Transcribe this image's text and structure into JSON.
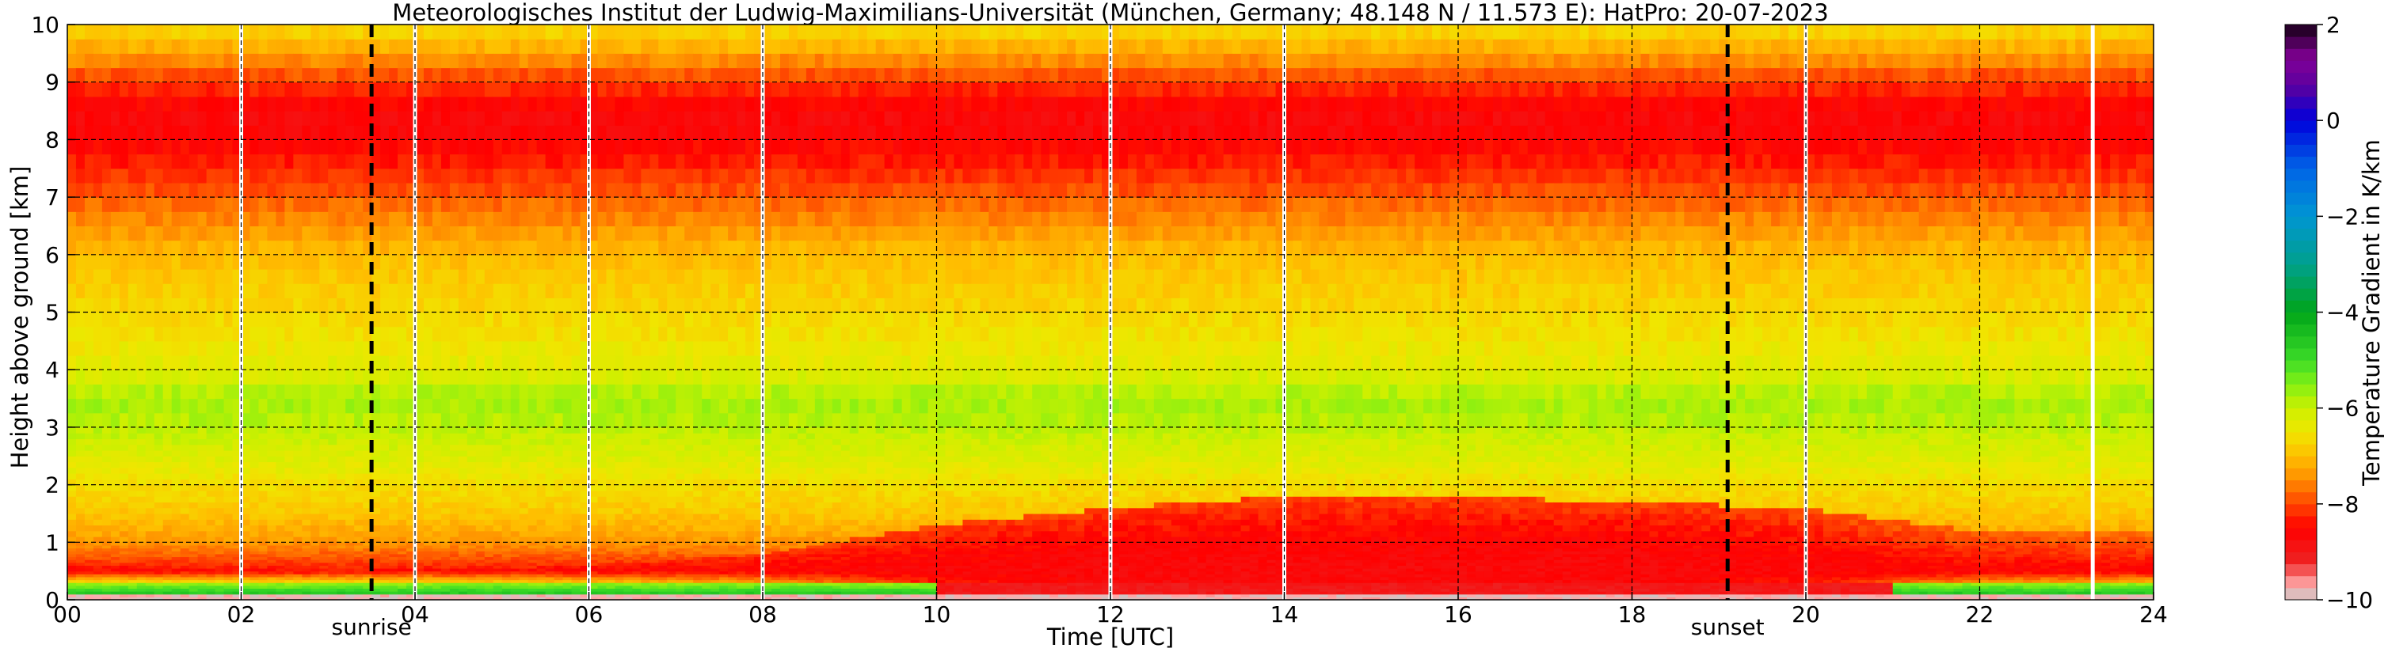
{
  "chart_data": {
    "type": "heatmap",
    "title": "Meteorologisches Institut der Ludwig-Maximilians-Universität (München, Germany; 48.148 N / 11.573 E):    HatPro: 20-07-2023",
    "xlabel": "Time [UTC]",
    "ylabel": "Height above ground [km]",
    "xlim": [
      0,
      24
    ],
    "ylim": [
      0,
      10
    ],
    "x_ticks": [
      "00",
      "02",
      "04",
      "06",
      "08",
      "10",
      "12",
      "14",
      "16",
      "18",
      "20",
      "22",
      "24"
    ],
    "y_ticks": [
      "0",
      "1",
      "2",
      "3",
      "4",
      "5",
      "6",
      "7",
      "8",
      "9",
      "10"
    ],
    "grid": true,
    "colorbar": {
      "label": "Temperature Gradient in K/km",
      "range": [
        -10,
        2
      ],
      "ticks": [
        "2",
        "0",
        "−2",
        "−4",
        "−6",
        "−8",
        "−10"
      ]
    },
    "profile": [
      {
        "height_km": 0.05,
        "gradient": -9.6
      },
      {
        "height_km": 0.2,
        "gradient": -4.0
      },
      {
        "height_km": 0.5,
        "gradient": -8.4
      },
      {
        "height_km": 1.0,
        "gradient": -7.4
      },
      {
        "height_km": 1.5,
        "gradient": -6.9
      },
      {
        "height_km": 2.0,
        "gradient": -6.6
      },
      {
        "height_km": 2.5,
        "gradient": -6.2
      },
      {
        "height_km": 3.0,
        "gradient": -5.9
      },
      {
        "height_km": 3.5,
        "gradient": -5.7
      },
      {
        "height_km": 4.0,
        "gradient": -6.3
      },
      {
        "height_km": 5.0,
        "gradient": -6.7
      },
      {
        "height_km": 6.0,
        "gradient": -7.0
      },
      {
        "height_km": 6.7,
        "gradient": -7.6
      },
      {
        "height_km": 7.2,
        "gradient": -8.0
      },
      {
        "height_km": 8.0,
        "gradient": -8.6
      },
      {
        "height_km": 8.5,
        "gradient": -8.7
      },
      {
        "height_km": 9.0,
        "gradient": -8.1
      },
      {
        "height_km": 9.5,
        "gradient": -7.3
      },
      {
        "height_km": 10.0,
        "gradient": -6.6
      }
    ],
    "boundary_layer": [
      {
        "time": 0,
        "top_km": 0.6,
        "strength": 0.4
      },
      {
        "time": 3.5,
        "top_km": 0.5,
        "strength": 0.4
      },
      {
        "time": 6,
        "top_km": 0.6,
        "strength": 0.5
      },
      {
        "time": 8,
        "top_km": 0.8,
        "strength": 0.6
      },
      {
        "time": 10,
        "top_km": 1.3,
        "strength": 0.9
      },
      {
        "time": 12,
        "top_km": 1.6,
        "strength": 1.0
      },
      {
        "time": 14,
        "top_km": 1.8,
        "strength": 1.0
      },
      {
        "time": 16,
        "top_km": 1.8,
        "strength": 1.0
      },
      {
        "time": 18,
        "top_km": 1.7,
        "strength": 1.0
      },
      {
        "time": 20,
        "top_km": 1.6,
        "strength": 0.9
      },
      {
        "time": 22,
        "top_km": 1.2,
        "strength": 0.6
      },
      {
        "time": 24,
        "top_km": 1.2,
        "strength": 0.5
      }
    ],
    "surface_inversion": [
      {
        "time": 0,
        "present": 1
      },
      {
        "time": 9.5,
        "present": 1
      },
      {
        "time": 10.5,
        "present": 0
      },
      {
        "time": 20.5,
        "present": 0
      },
      {
        "time": 21.5,
        "present": 1
      },
      {
        "time": 24,
        "present": 1
      }
    ],
    "data_gaps_utc": [
      2.0,
      4.0,
      6.0,
      8.0,
      12.0,
      14.0,
      20.0,
      23.3
    ],
    "events": [
      {
        "label": "sunrise",
        "time": 3.5
      },
      {
        "label": "sunset",
        "time": 19.1
      }
    ]
  }
}
